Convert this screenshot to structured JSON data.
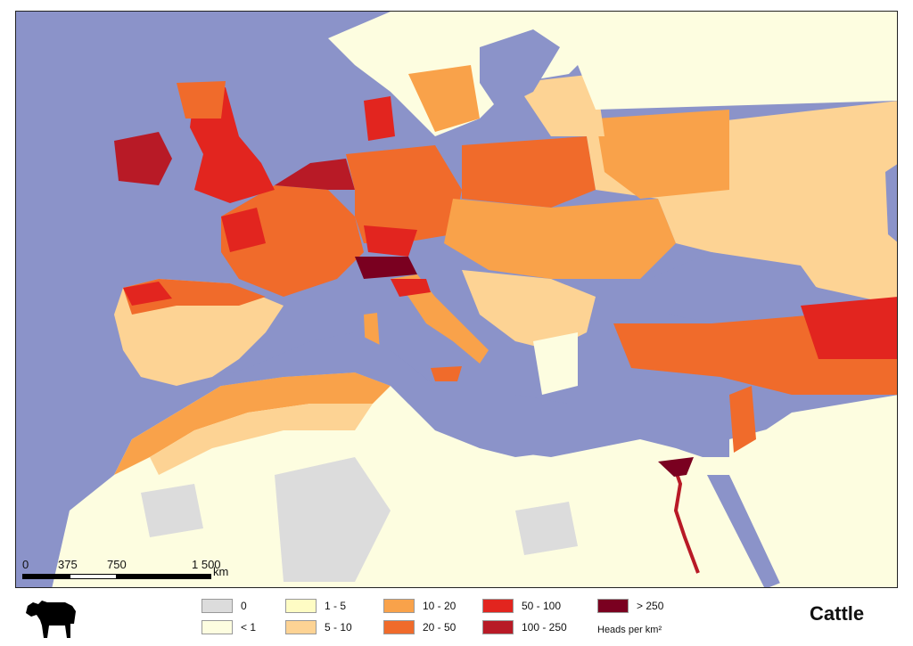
{
  "map": {
    "title": "Cattle",
    "units_label": "Heads per km²",
    "scale_bar": {
      "labels": [
        "0",
        "375",
        "750",
        "1 500"
      ],
      "unit": "km"
    },
    "legend": [
      {
        "label": "0",
        "color": "#dcdcdc"
      },
      {
        "label": "< 1",
        "color": "#fdfde0"
      },
      {
        "label": "1 - 5",
        "color": "#fefcc4"
      },
      {
        "label": "5 - 10",
        "color": "#fdd394"
      },
      {
        "label": "10 - 20",
        "color": "#f9a24a"
      },
      {
        "label": "20 - 50",
        "color": "#f06b2b"
      },
      {
        "label": "50 - 100",
        "color": "#e2251f"
      },
      {
        "label": "100 - 250",
        "color": "#b81a26"
      },
      {
        "label": "> 250",
        "color": "#7a0020"
      }
    ],
    "colors": {
      "sea": "#8b93c9",
      "no_data": "#dcdcdc",
      "border": "#222222"
    },
    "icon": "cow-silhouette-icon"
  }
}
